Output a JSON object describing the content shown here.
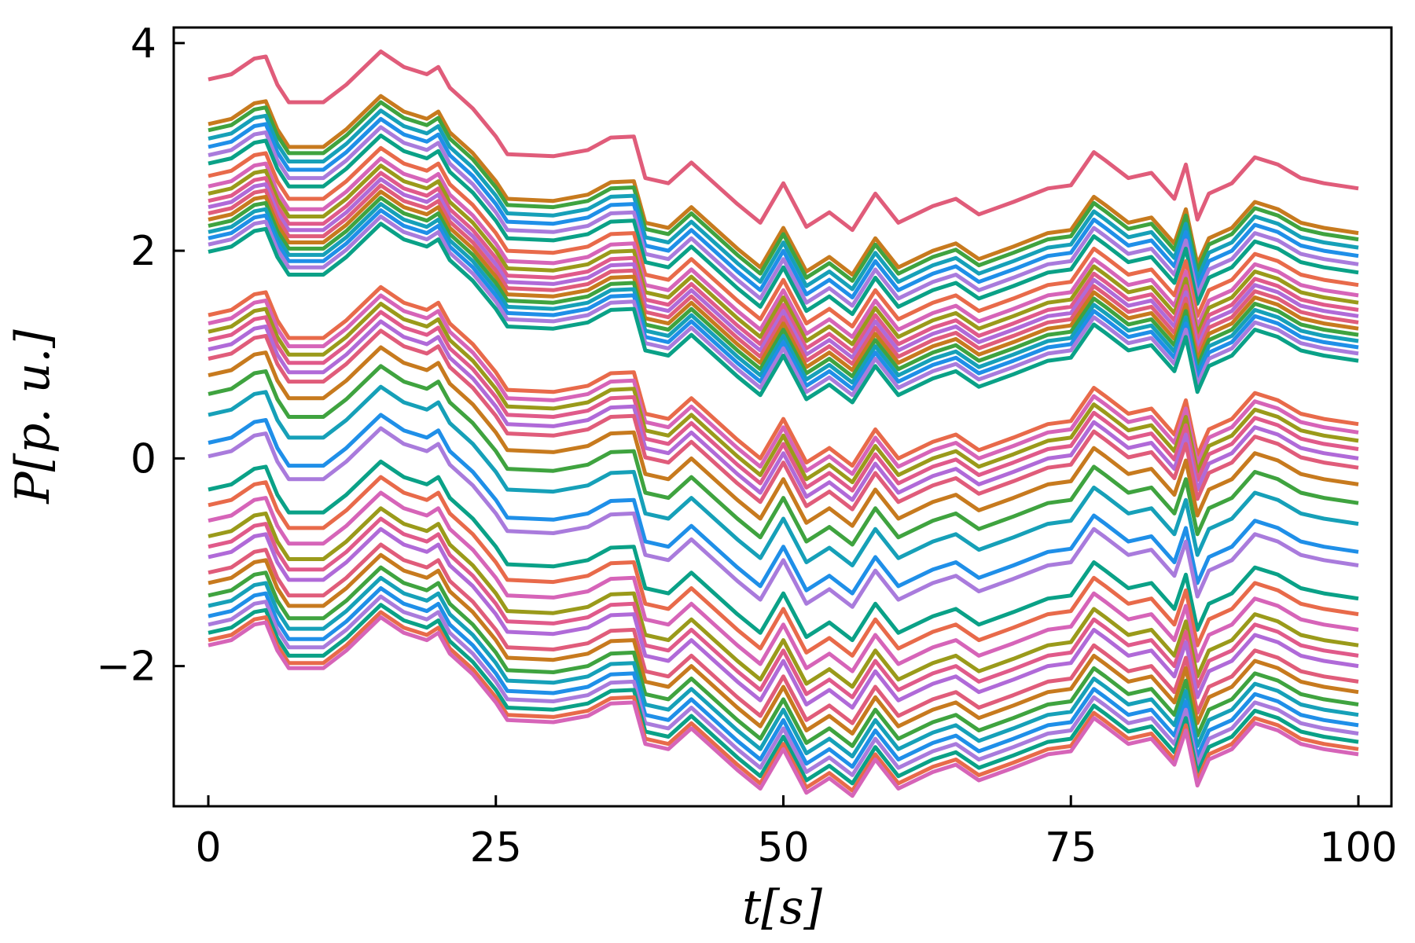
{
  "chart_data": {
    "type": "line",
    "title": "",
    "xlabel": "t[s]",
    "ylabel": "P[p. u.]",
    "xlim": [
      0,
      100
    ],
    "ylim": [
      -3.35,
      4.15
    ],
    "xticks": [
      0,
      25,
      50,
      75,
      100
    ],
    "xtick_labels": [
      "0",
      "25",
      "50",
      "75",
      "100"
    ],
    "yticks": [
      -2,
      0,
      2,
      4
    ],
    "ytick_labels": [
      "−2",
      "0",
      "2",
      "4"
    ],
    "grid": false,
    "legend": "none",
    "colors": [
      "#e05c7a",
      "#c77a1e",
      "#3fa33f",
      "#16a0b8",
      "#1f8fe8",
      "#a97bdc",
      "#0aa187",
      "#e86a4a",
      "#d664b8",
      "#9a9a1a",
      "#e05a8a",
      "#b06ad8"
    ],
    "x": [
      0,
      2,
      4,
      5,
      6,
      7,
      10,
      12,
      15,
      17,
      19,
      20,
      21,
      23,
      25,
      26,
      30,
      33,
      35,
      37,
      38,
      40,
      42,
      44,
      46,
      48,
      50,
      52,
      54,
      56,
      58,
      60,
      63,
      65,
      67,
      70,
      73,
      75,
      77,
      78,
      80,
      82,
      84,
      85,
      86,
      87,
      89,
      91,
      93,
      95,
      97,
      100
    ],
    "series": [
      {
        "offset": 3.65
      },
      {
        "offset": 3.22
      },
      {
        "offset": 3.16
      },
      {
        "offset": 3.08
      },
      {
        "offset": 3.0
      },
      {
        "offset": 2.92
      },
      {
        "offset": 2.84
      },
      {
        "offset": 2.72
      },
      {
        "offset": 2.62
      },
      {
        "offset": 2.55
      },
      {
        "offset": 2.48
      },
      {
        "offset": 2.42
      },
      {
        "offset": 2.36
      },
      {
        "offset": 2.3
      },
      {
        "offset": 2.24
      },
      {
        "offset": 2.18
      },
      {
        "offset": 2.12
      },
      {
        "offset": 2.06
      },
      {
        "offset": 1.99
      },
      {
        "offset": 1.38
      },
      {
        "offset": 1.3
      },
      {
        "offset": 1.22
      },
      {
        "offset": 1.14
      },
      {
        "offset": 1.05
      },
      {
        "offset": 0.96
      },
      {
        "offset": 0.8
      },
      {
        "offset": 0.62
      },
      {
        "offset": 0.42
      },
      {
        "offset": 0.15
      },
      {
        "offset": 0.02
      },
      {
        "offset": -0.3
      },
      {
        "offset": -0.45
      },
      {
        "offset": -0.6
      },
      {
        "offset": -0.75
      },
      {
        "offset": -0.85
      },
      {
        "offset": -0.95
      },
      {
        "offset": -1.1
      },
      {
        "offset": -1.2
      },
      {
        "offset": -1.32
      },
      {
        "offset": -1.42
      },
      {
        "offset": -1.52
      },
      {
        "offset": -1.6
      },
      {
        "offset": -1.68
      },
      {
        "offset": -1.75
      },
      {
        "offset": -1.8
      }
    ],
    "shape": [
      0,
      0.05,
      0.2,
      0.22,
      -0.05,
      -0.22,
      -0.22,
      -0.05,
      0.27,
      0.12,
      0.05,
      0.12,
      -0.08,
      -0.28,
      -0.55,
      -0.72,
      -0.74,
      -0.68,
      -0.56,
      -0.55,
      -0.95,
      -1.0,
      -0.8,
      -1.0,
      -1.2,
      -1.38,
      -1.0,
      -1.42,
      -1.28,
      -1.45,
      -1.1,
      -1.38,
      -1.22,
      -1.15,
      -1.3,
      -1.18,
      -1.05,
      -1.02,
      -0.7,
      -0.78,
      -0.95,
      -0.9,
      -1.15,
      -0.82,
      -1.35,
      -1.1,
      -1.0,
      -0.75,
      -0.82,
      -0.95,
      -1.0,
      -1.05
    ]
  }
}
